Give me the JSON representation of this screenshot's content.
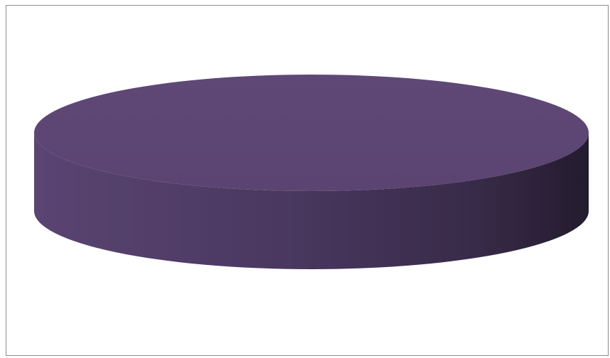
{
  "chart_data": {
    "type": "pie",
    "style": "3d",
    "categories": [
      ""
    ],
    "values": [
      100
    ],
    "colors": [
      "#5c4573"
    ],
    "title": "",
    "legend": "none"
  }
}
